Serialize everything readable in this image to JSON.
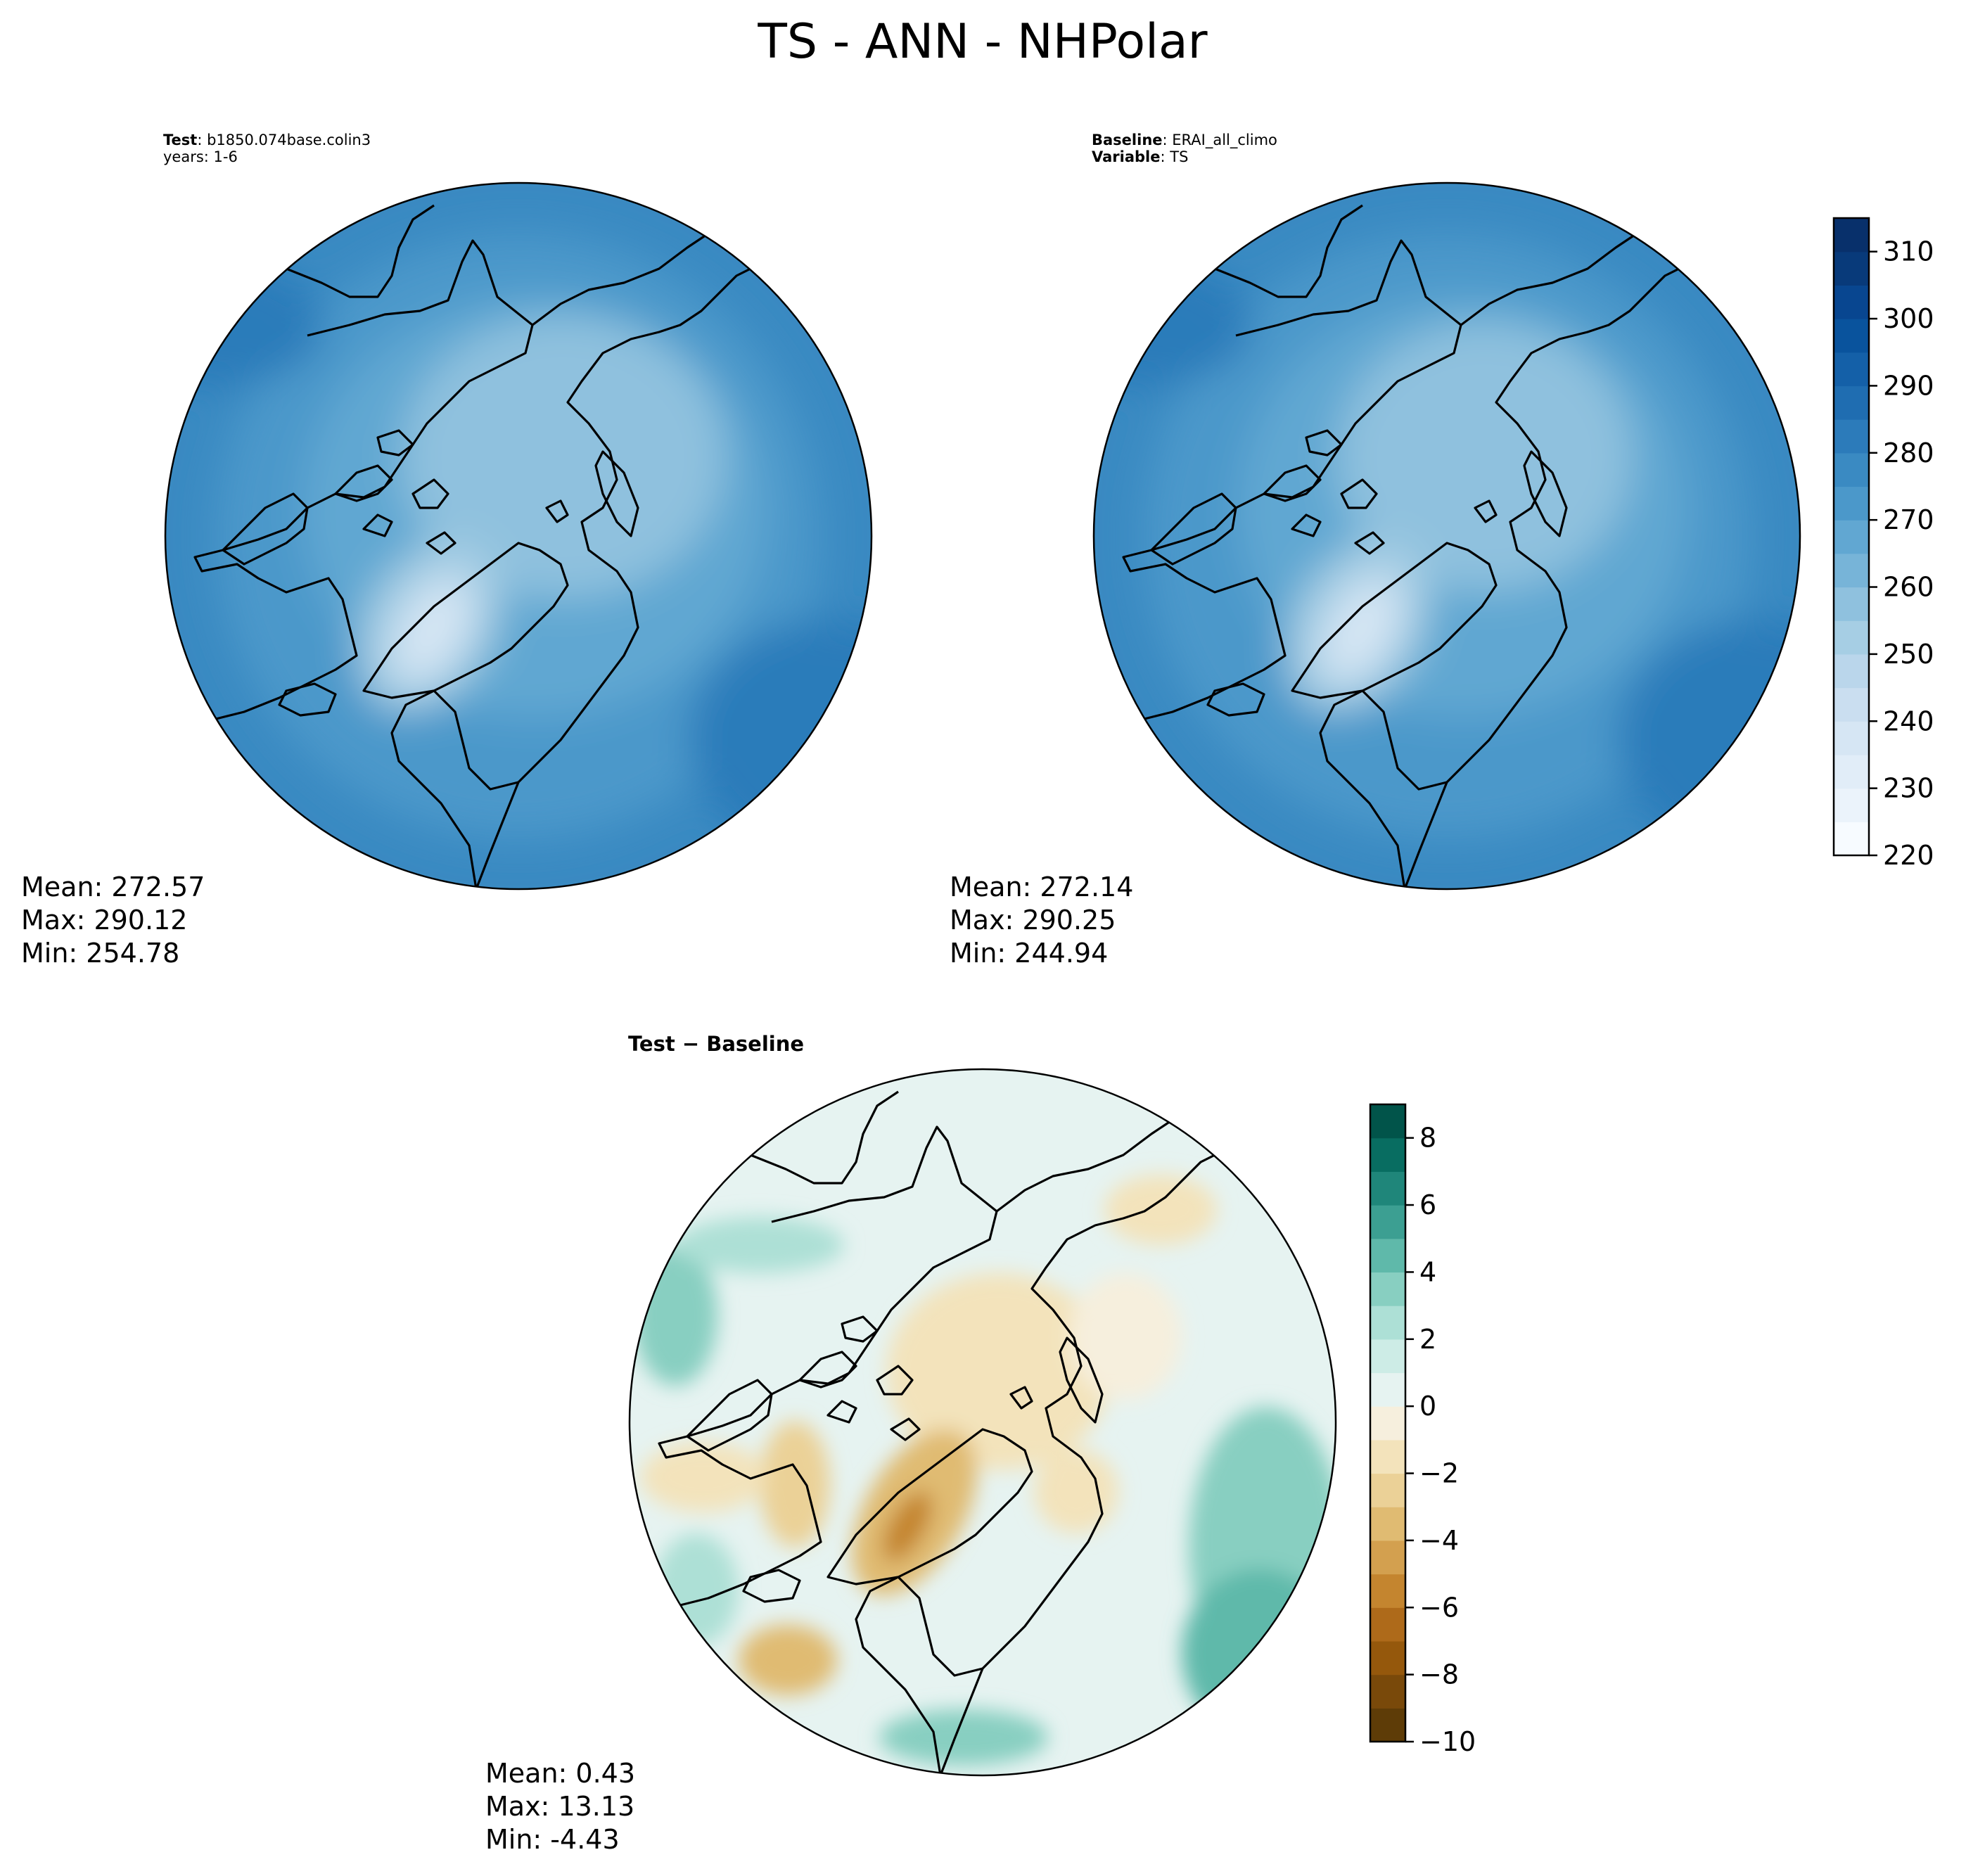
{
  "figure": {
    "title": "TS - ANN - NHPolar"
  },
  "panels": [
    {
      "id": "test",
      "meta_lines": [
        {
          "bold": "Test",
          "sep": ": ",
          "text": "b1850.074base.colin3"
        },
        {
          "bold": "",
          "sep": "",
          "text": "years: 1-6"
        }
      ],
      "stats": [
        "Mean: 272.57",
        "Max: 290.12",
        "Min: 254.78"
      ]
    },
    {
      "id": "baseline",
      "meta_lines": [
        {
          "bold": "Baseline",
          "sep": ": ",
          "text": "ERAI_all_climo"
        },
        {
          "bold": "Variable",
          "sep": ": ",
          "text": "TS"
        }
      ],
      "stats": [
        "Mean: 272.14",
        "Max: 290.25",
        "Min: 244.94"
      ]
    },
    {
      "id": "diff",
      "header": "Test − Baseline",
      "stats": [
        "Mean:  0.43",
        "Max: 13.13",
        "Min: -4.43"
      ]
    }
  ],
  "chart_data": [
    {
      "type": "heatmap",
      "panel": "test",
      "projection": "north-polar-stereographic",
      "variable": "TS",
      "season": "ANN",
      "stats": {
        "mean": 272.57,
        "max": 290.12,
        "min": 254.78
      }
    },
    {
      "type": "heatmap",
      "panel": "baseline",
      "projection": "north-polar-stereographic",
      "variable": "TS",
      "season": "ANN",
      "stats": {
        "mean": 272.14,
        "max": 290.25,
        "min": 244.94
      }
    },
    {
      "type": "heatmap",
      "panel": "diff",
      "projection": "north-polar-stereographic",
      "stats": {
        "mean": 0.43,
        "max": 13.13,
        "min": -4.43
      }
    }
  ],
  "colorbars": {
    "main": {
      "range": [
        220,
        315
      ],
      "ticks": [
        "220",
        "230",
        "240",
        "250",
        "260",
        "270",
        "280",
        "290",
        "300",
        "310"
      ],
      "tick_values": [
        220,
        230,
        240,
        250,
        260,
        270,
        280,
        290,
        300,
        310
      ],
      "levels": [
        220,
        225,
        230,
        235,
        240,
        245,
        250,
        255,
        260,
        265,
        270,
        275,
        280,
        285,
        290,
        295,
        300,
        305,
        310,
        315
      ],
      "colors": [
        "#f7fbff",
        "#ebf3fb",
        "#e1edf8",
        "#d6e6f4",
        "#cadef0",
        "#bad6eb",
        "#a6cee4",
        "#8fc1de",
        "#77b4d8",
        "#61a7d2",
        "#4b98ca",
        "#3a8ac2",
        "#2c7bba",
        "#1f6db1",
        "#1460a8",
        "#09539d",
        "#084690",
        "#083a7a",
        "#08306b"
      ]
    },
    "diff": {
      "range": [
        -10,
        9
      ],
      "ticks": [
        "−10",
        "−8",
        "−6",
        "−4",
        "−2",
        "0",
        "2",
        "4",
        "6",
        "8"
      ],
      "tick_values": [
        -10,
        -8,
        -6,
        -4,
        -2,
        0,
        2,
        4,
        6,
        8
      ],
      "levels": [
        -10,
        -9,
        -8,
        -7,
        -6,
        -5,
        -4,
        -3,
        -2,
        -1,
        0,
        1,
        2,
        3,
        4,
        5,
        6,
        7,
        8,
        9
      ],
      "colors": [
        "#5e3c07",
        "#79490a",
        "#95580c",
        "#ae6a1a",
        "#c4852f",
        "#d3a04f",
        "#e0bb72",
        "#ebd197",
        "#f3e3bb",
        "#f6efdd",
        "#e6f3f1",
        "#cdece6",
        "#ade0d6",
        "#88cfc1",
        "#5fb9aa",
        "#3c9f92",
        "#1f867a",
        "#086d61",
        "#01544a"
      ]
    }
  },
  "colors": {
    "coast": "#000000",
    "test_base": "#3f8fc6",
    "baseline_base": "#3f8fc6",
    "diff_base": "#e8f3f1"
  }
}
